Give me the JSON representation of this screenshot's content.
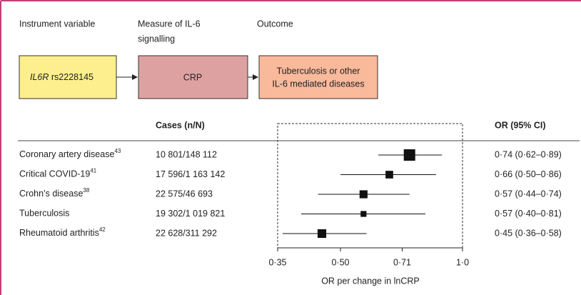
{
  "diagram": {
    "columns": [
      "Instrument variable",
      [
        "Measure of IL-6",
        "signalling"
      ],
      "Outcome"
    ],
    "instrument": {
      "gene": "IL6R",
      "snp": "rs2228145"
    },
    "measure": "CRP",
    "outcome": [
      "Tuberculosis or other",
      "IL-6 mediated diseases"
    ]
  },
  "chart_data": {
    "type": "forest",
    "cases_header": "Cases (n/N)",
    "or_header": "OR (95% CI)",
    "categories": [
      "Coronary artery disease",
      "Critical COVID-19",
      "Crohn’s disease",
      "Tuberculosis",
      "Rheumatoid arthritis"
    ],
    "refs": [
      "43",
      "41",
      "38",
      null,
      "42"
    ],
    "cases": [
      "10 801/148 112",
      "17 596/1 163 142",
      "22 575/46 693",
      "19 302/1 019 821",
      "22 628/311 292"
    ],
    "values": [
      0.74,
      0.66,
      0.57,
      0.57,
      0.45
    ],
    "lower": [
      0.62,
      0.5,
      0.44,
      0.4,
      0.36
    ],
    "upper": [
      0.89,
      0.86,
      0.74,
      0.81,
      0.58
    ],
    "value_labels": [
      "0·74 (0·62–0·89)",
      "0·66 (0·50–0·86)",
      "0·57 (0·44–0·74)",
      "0·57 (0·40–0·81)",
      "0·45 (0·36–0·58)"
    ],
    "color": "#111111",
    "xlim": [
      0.35,
      1.0
    ],
    "log_x": true,
    "xticks": [
      {
        "value": 0.35,
        "label": "0·35"
      },
      {
        "value": 0.5,
        "label": "0·50"
      },
      {
        "value": 0.71,
        "label": "0·71"
      },
      {
        "value": 1.0,
        "label": "1·0"
      }
    ],
    "xlabel": "OR per change in lnCRP"
  }
}
